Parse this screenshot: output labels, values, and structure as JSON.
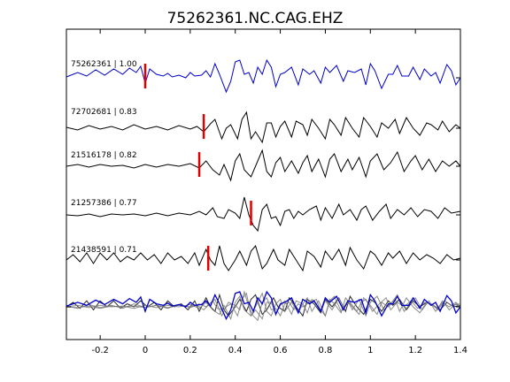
{
  "chart_data": {
    "type": "line",
    "title": "75262361.NC.CAG.EHZ",
    "xlabel": "",
    "ylabel": "",
    "xlim": [
      -0.35,
      1.4
    ],
    "x_ticks": [
      "-0.2",
      "0",
      "0.2",
      "0.4",
      "0.6",
      "0.8",
      "1",
      "1.2",
      "1.4"
    ],
    "x_tick_values": [
      -0.2,
      0,
      0.2,
      0.4,
      0.6,
      0.8,
      1.0,
      1.2,
      1.4
    ],
    "grid": false,
    "legend": "none",
    "traces": [
      {
        "label": "75262361 | 1.00",
        "color": "#0000cc",
        "pick_time": 0.0,
        "waveform": [
          [
            -0.35,
            0.05
          ],
          [
            -0.3,
            0.3
          ],
          [
            -0.26,
            0.1
          ],
          [
            -0.22,
            0.45
          ],
          [
            -0.18,
            0.15
          ],
          [
            -0.14,
            0.5
          ],
          [
            -0.1,
            0.2
          ],
          [
            -0.07,
            0.55
          ],
          [
            -0.04,
            0.3
          ],
          [
            -0.02,
            0.65
          ],
          [
            0.0,
            -0.3
          ],
          [
            0.02,
            0.5
          ],
          [
            0.05,
            0.2
          ],
          [
            0.08,
            0.1
          ],
          [
            0.1,
            0.25
          ],
          [
            0.12,
            0.05
          ],
          [
            0.15,
            0.15
          ],
          [
            0.18,
            0.0
          ],
          [
            0.2,
            0.3
          ],
          [
            0.22,
            0.1
          ],
          [
            0.25,
            0.15
          ],
          [
            0.27,
            0.4
          ],
          [
            0.29,
            0.05
          ],
          [
            0.31,
            0.8
          ],
          [
            0.33,
            0.2
          ],
          [
            0.36,
            -0.8
          ],
          [
            0.38,
            -0.2
          ],
          [
            0.4,
            0.9
          ],
          [
            0.42,
            1.0
          ],
          [
            0.44,
            0.2
          ],
          [
            0.46,
            0.3
          ],
          [
            0.48,
            -0.3
          ],
          [
            0.5,
            0.6
          ],
          [
            0.52,
            0.2
          ],
          [
            0.54,
            1.0
          ],
          [
            0.56,
            0.6
          ],
          [
            0.58,
            -0.5
          ],
          [
            0.6,
            0.2
          ],
          [
            0.62,
            0.3
          ],
          [
            0.65,
            0.6
          ],
          [
            0.68,
            -0.4
          ],
          [
            0.7,
            0.5
          ],
          [
            0.73,
            0.2
          ],
          [
            0.75,
            0.4
          ],
          [
            0.78,
            -0.3
          ],
          [
            0.8,
            0.6
          ],
          [
            0.82,
            0.3
          ],
          [
            0.85,
            0.7
          ],
          [
            0.88,
            -0.2
          ],
          [
            0.9,
            0.4
          ],
          [
            0.93,
            0.3
          ],
          [
            0.96,
            0.5
          ],
          [
            0.98,
            -0.4
          ],
          [
            1.0,
            0.8
          ],
          [
            1.02,
            0.4
          ],
          [
            1.05,
            -0.6
          ],
          [
            1.08,
            0.2
          ],
          [
            1.1,
            0.2
          ],
          [
            1.12,
            0.7
          ],
          [
            1.14,
            0.1
          ],
          [
            1.17,
            0.1
          ],
          [
            1.19,
            0.6
          ],
          [
            1.22,
            -0.1
          ],
          [
            1.24,
            0.5
          ],
          [
            1.27,
            0.1
          ],
          [
            1.29,
            0.3
          ],
          [
            1.31,
            -0.3
          ],
          [
            1.34,
            0.75
          ],
          [
            1.36,
            0.4
          ],
          [
            1.38,
            -0.4
          ],
          [
            1.4,
            0.0
          ]
        ]
      },
      {
        "label": "72702681 | 0.83",
        "color": "#000000",
        "pick_time": 0.26,
        "waveform": [
          [
            -0.35,
            0.05
          ],
          [
            -0.3,
            -0.1
          ],
          [
            -0.25,
            0.15
          ],
          [
            -0.2,
            -0.05
          ],
          [
            -0.15,
            0.1
          ],
          [
            -0.1,
            -0.1
          ],
          [
            -0.05,
            0.2
          ],
          [
            0.0,
            -0.05
          ],
          [
            0.05,
            0.1
          ],
          [
            0.1,
            -0.1
          ],
          [
            0.15,
            0.15
          ],
          [
            0.2,
            -0.05
          ],
          [
            0.23,
            0.1
          ],
          [
            0.26,
            -0.2
          ],
          [
            0.29,
            0.25
          ],
          [
            0.31,
            0.5
          ],
          [
            0.34,
            -0.6
          ],
          [
            0.36,
            0.0
          ],
          [
            0.38,
            0.2
          ],
          [
            0.41,
            -0.6
          ],
          [
            0.43,
            0.5
          ],
          [
            0.45,
            0.9
          ],
          [
            0.47,
            -0.6
          ],
          [
            0.49,
            -0.2
          ],
          [
            0.52,
            -0.8
          ],
          [
            0.54,
            0.3
          ],
          [
            0.56,
            0.3
          ],
          [
            0.58,
            -0.5
          ],
          [
            0.6,
            0.1
          ],
          [
            0.62,
            0.4
          ],
          [
            0.65,
            -0.5
          ],
          [
            0.67,
            0.4
          ],
          [
            0.7,
            0.2
          ],
          [
            0.72,
            -0.4
          ],
          [
            0.74,
            0.5
          ],
          [
            0.77,
            0.0
          ],
          [
            0.8,
            -0.6
          ],
          [
            0.82,
            0.5
          ],
          [
            0.84,
            0.2
          ],
          [
            0.87,
            -0.4
          ],
          [
            0.89,
            0.6
          ],
          [
            0.92,
            0.0
          ],
          [
            0.95,
            -0.5
          ],
          [
            0.97,
            0.6
          ],
          [
            1.0,
            0.1
          ],
          [
            1.03,
            -0.5
          ],
          [
            1.05,
            0.3
          ],
          [
            1.08,
            0.0
          ],
          [
            1.11,
            0.5
          ],
          [
            1.13,
            -0.3
          ],
          [
            1.16,
            0.6
          ],
          [
            1.19,
            0.0
          ],
          [
            1.22,
            -0.4
          ],
          [
            1.25,
            0.3
          ],
          [
            1.27,
            0.2
          ],
          [
            1.3,
            -0.1
          ],
          [
            1.32,
            0.4
          ],
          [
            1.35,
            -0.2
          ],
          [
            1.38,
            0.2
          ],
          [
            1.4,
            0.0
          ]
        ]
      },
      {
        "label": "21516178 | 0.82",
        "color": "#000000",
        "pick_time": 0.24,
        "waveform": [
          [
            -0.35,
            0.0
          ],
          [
            -0.3,
            0.1
          ],
          [
            -0.25,
            -0.05
          ],
          [
            -0.2,
            0.1
          ],
          [
            -0.15,
            0.0
          ],
          [
            -0.1,
            0.05
          ],
          [
            -0.05,
            -0.1
          ],
          [
            0.0,
            0.1
          ],
          [
            0.05,
            -0.05
          ],
          [
            0.1,
            0.1
          ],
          [
            0.15,
            0.0
          ],
          [
            0.2,
            0.15
          ],
          [
            0.24,
            -0.1
          ],
          [
            0.27,
            0.3
          ],
          [
            0.3,
            -0.2
          ],
          [
            0.33,
            -0.5
          ],
          [
            0.35,
            0.1
          ],
          [
            0.38,
            -0.8
          ],
          [
            0.4,
            0.3
          ],
          [
            0.42,
            0.7
          ],
          [
            0.44,
            -0.2
          ],
          [
            0.47,
            -0.6
          ],
          [
            0.5,
            0.3
          ],
          [
            0.52,
            0.9
          ],
          [
            0.54,
            -0.3
          ],
          [
            0.56,
            -0.6
          ],
          [
            0.58,
            0.2
          ],
          [
            0.6,
            0.5
          ],
          [
            0.62,
            -0.3
          ],
          [
            0.65,
            0.3
          ],
          [
            0.68,
            -0.4
          ],
          [
            0.7,
            0.2
          ],
          [
            0.72,
            0.6
          ],
          [
            0.74,
            -0.3
          ],
          [
            0.77,
            0.4
          ],
          [
            0.8,
            -0.6
          ],
          [
            0.82,
            0.4
          ],
          [
            0.84,
            0.7
          ],
          [
            0.87,
            -0.3
          ],
          [
            0.9,
            0.4
          ],
          [
            0.92,
            -0.2
          ],
          [
            0.95,
            0.5
          ],
          [
            0.98,
            -0.6
          ],
          [
            1.0,
            0.3
          ],
          [
            1.03,
            0.7
          ],
          [
            1.06,
            -0.2
          ],
          [
            1.09,
            0.2
          ],
          [
            1.12,
            0.8
          ],
          [
            1.15,
            -0.3
          ],
          [
            1.18,
            0.3
          ],
          [
            1.2,
            0.6
          ],
          [
            1.23,
            -0.2
          ],
          [
            1.26,
            0.4
          ],
          [
            1.29,
            -0.3
          ],
          [
            1.32,
            0.3
          ],
          [
            1.35,
            0.0
          ],
          [
            1.38,
            0.3
          ],
          [
            1.4,
            0.0
          ]
        ]
      },
      {
        "label": "21257386 | 0.77",
        "color": "#000000",
        "pick_time": 0.47,
        "waveform": [
          [
            -0.35,
            0.0
          ],
          [
            -0.3,
            -0.05
          ],
          [
            -0.25,
            0.05
          ],
          [
            -0.2,
            -0.1
          ],
          [
            -0.15,
            0.05
          ],
          [
            -0.1,
            0.0
          ],
          [
            -0.05,
            0.05
          ],
          [
            0.0,
            -0.05
          ],
          [
            0.05,
            0.1
          ],
          [
            0.1,
            -0.05
          ],
          [
            0.15,
            0.1
          ],
          [
            0.2,
            0.0
          ],
          [
            0.24,
            0.2
          ],
          [
            0.27,
            0.0
          ],
          [
            0.3,
            0.4
          ],
          [
            0.32,
            -0.1
          ],
          [
            0.35,
            -0.2
          ],
          [
            0.37,
            0.3
          ],
          [
            0.4,
            0.1
          ],
          [
            0.42,
            -0.2
          ],
          [
            0.44,
            1.0
          ],
          [
            0.46,
            0.0
          ],
          [
            0.48,
            -0.6
          ],
          [
            0.5,
            -0.9
          ],
          [
            0.52,
            0.3
          ],
          [
            0.54,
            0.6
          ],
          [
            0.56,
            -0.2
          ],
          [
            0.58,
            -0.1
          ],
          [
            0.6,
            -0.6
          ],
          [
            0.62,
            0.2
          ],
          [
            0.64,
            0.3
          ],
          [
            0.66,
            -0.2
          ],
          [
            0.68,
            0.2
          ],
          [
            0.7,
            0.0
          ],
          [
            0.73,
            0.3
          ],
          [
            0.76,
            0.5
          ],
          [
            0.78,
            -0.3
          ],
          [
            0.8,
            0.4
          ],
          [
            0.83,
            -0.2
          ],
          [
            0.86,
            0.6
          ],
          [
            0.88,
            0.0
          ],
          [
            0.91,
            0.3
          ],
          [
            0.94,
            -0.3
          ],
          [
            0.96,
            0.3
          ],
          [
            0.98,
            0.5
          ],
          [
            1.01,
            -0.3
          ],
          [
            1.04,
            0.2
          ],
          [
            1.07,
            0.6
          ],
          [
            1.09,
            -0.2
          ],
          [
            1.12,
            0.3
          ],
          [
            1.15,
            0.0
          ],
          [
            1.18,
            0.4
          ],
          [
            1.21,
            -0.1
          ],
          [
            1.24,
            0.3
          ],
          [
            1.27,
            0.2
          ],
          [
            1.3,
            -0.2
          ],
          [
            1.33,
            0.4
          ],
          [
            1.36,
            0.1
          ],
          [
            1.4,
            0.2
          ]
        ]
      },
      {
        "label": "21438591 | 0.71",
        "color": "#000000",
        "pick_time": 0.28,
        "waveform": [
          [
            -0.35,
            0.0
          ],
          [
            -0.32,
            0.3
          ],
          [
            -0.29,
            -0.1
          ],
          [
            -0.26,
            0.4
          ],
          [
            -0.23,
            -0.2
          ],
          [
            -0.2,
            0.4
          ],
          [
            -0.17,
            0.0
          ],
          [
            -0.14,
            0.4
          ],
          [
            -0.11,
            -0.1
          ],
          [
            -0.08,
            0.2
          ],
          [
            -0.05,
            0.0
          ],
          [
            -0.02,
            0.4
          ],
          [
            0.01,
            0.0
          ],
          [
            0.04,
            0.3
          ],
          [
            0.07,
            -0.2
          ],
          [
            0.1,
            0.4
          ],
          [
            0.13,
            0.0
          ],
          [
            0.16,
            0.2
          ],
          [
            0.19,
            -0.2
          ],
          [
            0.22,
            0.4
          ],
          [
            0.24,
            -0.3
          ],
          [
            0.27,
            0.6
          ],
          [
            0.29,
            0.0
          ],
          [
            0.31,
            -0.3
          ],
          [
            0.33,
            0.8
          ],
          [
            0.35,
            -0.2
          ],
          [
            0.37,
            -0.6
          ],
          [
            0.4,
            0.0
          ],
          [
            0.42,
            0.5
          ],
          [
            0.45,
            -0.3
          ],
          [
            0.47,
            0.5
          ],
          [
            0.49,
            0.8
          ],
          [
            0.52,
            -0.5
          ],
          [
            0.54,
            -0.2
          ],
          [
            0.57,
            0.6
          ],
          [
            0.59,
            0.0
          ],
          [
            0.62,
            -0.3
          ],
          [
            0.64,
            0.6
          ],
          [
            0.67,
            0.0
          ],
          [
            0.7,
            -0.6
          ],
          [
            0.72,
            0.5
          ],
          [
            0.75,
            0.2
          ],
          [
            0.78,
            -0.4
          ],
          [
            0.8,
            0.5
          ],
          [
            0.83,
            0.0
          ],
          [
            0.86,
            0.6
          ],
          [
            0.89,
            -0.3
          ],
          [
            0.91,
            0.7
          ],
          [
            0.94,
            0.0
          ],
          [
            0.97,
            -0.5
          ],
          [
            1.0,
            0.5
          ],
          [
            1.02,
            0.3
          ],
          [
            1.05,
            -0.3
          ],
          [
            1.08,
            0.4
          ],
          [
            1.1,
            0.1
          ],
          [
            1.13,
            0.5
          ],
          [
            1.16,
            -0.2
          ],
          [
            1.19,
            0.4
          ],
          [
            1.22,
            0.0
          ],
          [
            1.25,
            0.3
          ],
          [
            1.28,
            0.1
          ],
          [
            1.31,
            -0.2
          ],
          [
            1.34,
            0.3
          ],
          [
            1.37,
            0.0
          ],
          [
            1.4,
            0.1
          ]
        ]
      }
    ],
    "stack": {
      "label": "",
      "colors": [
        "#000000",
        "#777777",
        "#777777",
        "#777777",
        "#777777"
      ]
    }
  }
}
